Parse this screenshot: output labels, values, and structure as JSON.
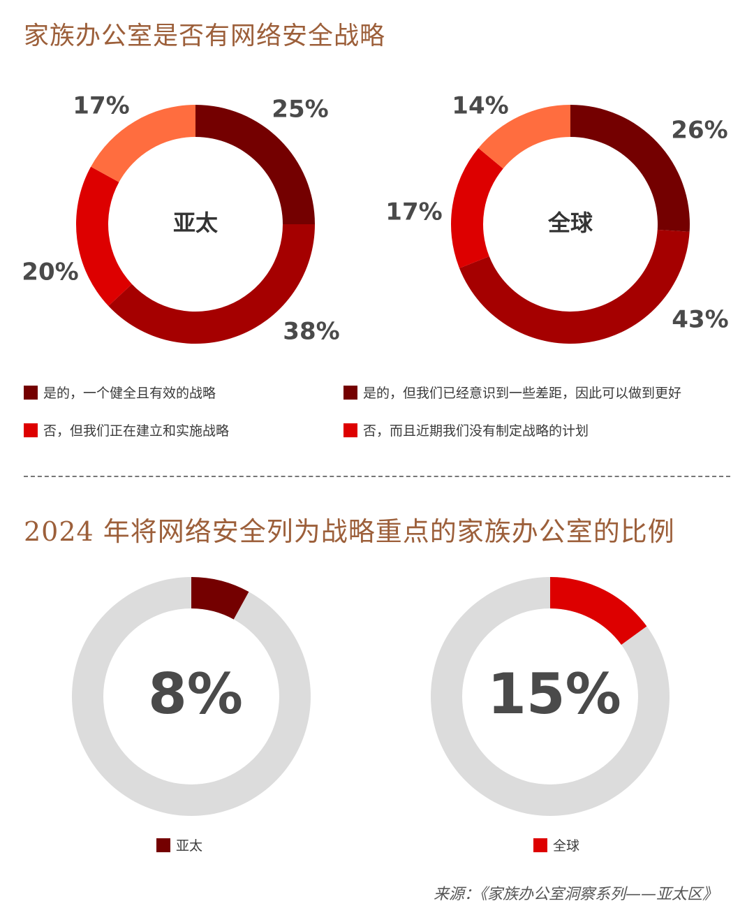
{
  "title_top": "家族办公室是否有网络安全战略",
  "title_bottom": "2024 年将网络安全列为战略重点的家族办公室的比例",
  "chart_data": [
    {
      "type": "pie",
      "center_label": "亚太",
      "slices": [
        {
          "label": "是的，一个健全且有效的战略",
          "value": 25,
          "display": "25%",
          "color": "#740000"
        },
        {
          "label": "是的，但我们已经意识到一些差距，因此可以做到更好",
          "value": 38,
          "display": "38%",
          "color": "#a50000"
        },
        {
          "label": "否，但我们正在建立和实施战略",
          "value": 20,
          "display": "20%",
          "color": "#dd0000"
        },
        {
          "label": "否，而且近期我们没有制定战略的计划",
          "value": 17,
          "display": "17%",
          "color": "#ff6d3f"
        }
      ]
    },
    {
      "type": "pie",
      "center_label": "全球",
      "slices": [
        {
          "label": "是的，一个健全且有效的战略",
          "value": 26,
          "display": "26%",
          "color": "#740000"
        },
        {
          "label": "是的，但我们已经意识到一些差距，因此可以做到更好",
          "value": 43,
          "display": "43%",
          "color": "#a50000"
        },
        {
          "label": "否，但我们正在建立和实施战略",
          "value": 17,
          "display": "17%",
          "color": "#dd0000"
        },
        {
          "label": "否，而且近期我们没有制定战略的计划",
          "value": 14,
          "display": "14%",
          "color": "#ff6d3f"
        }
      ]
    },
    {
      "type": "pie",
      "series": "亚太",
      "value": 8,
      "display": "8%",
      "color": "#740000",
      "rest_color": "#dcdcdc"
    },
    {
      "type": "pie",
      "series": "全球",
      "value": 15,
      "display": "15%",
      "color": "#dd0000",
      "rest_color": "#dcdcdc"
    }
  ],
  "legend_top": [
    {
      "label": "是的，一个健全且有效的战略",
      "color": "#740000"
    },
    {
      "label": "是的，但我们已经意识到一些差距，因此可以做到更好",
      "color": "#740000"
    },
    {
      "label": "否，但我们正在建立和实施战略",
      "color": "#dd0000"
    },
    {
      "label": "否，而且近期我们没有制定战略的计划",
      "color": "#dd0000"
    }
  ],
  "legend_bottom": [
    {
      "label": "亚太",
      "color": "#740000"
    },
    {
      "label": "全球",
      "color": "#dd0000"
    }
  ],
  "source": "来源：《家族办公室洞察系列——亚太区》"
}
